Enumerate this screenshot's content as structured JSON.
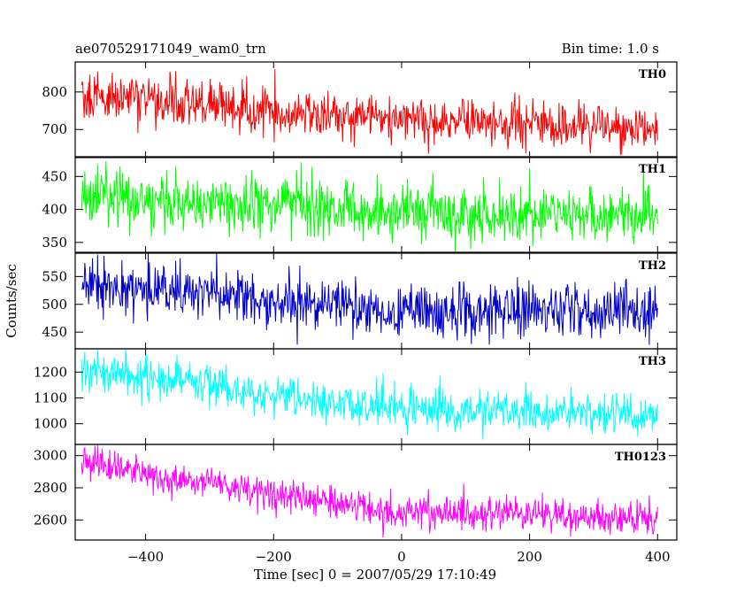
{
  "chart_data": {
    "type": "line",
    "title": "ae070529171049_wam0_trn",
    "subtitle": "Bin time: 1.0 s",
    "xlabel": "Time [sec] 0 = 2007/05/29 17:10:49",
    "ylabel": "Counts/sec",
    "xlim": [
      -510,
      430
    ],
    "x_ticks": [
      -400,
      -200,
      0,
      200,
      400
    ],
    "x_tick_labels": [
      "−400",
      "−200",
      "0",
      "200",
      "400"
    ],
    "x_sampling": {
      "start": -500,
      "end": 400,
      "step": 1
    },
    "grid": false,
    "legend": "none",
    "panels": [
      {
        "name": "TH0",
        "color": "#ff0000",
        "ylim": [
          625,
          880
        ],
        "y_ticks": [
          700,
          800
        ],
        "y_tick_labels": [
          "700",
          "800"
        ],
        "trend": {
          "x": [
            -500,
            -300,
            -200,
            0,
            400
          ],
          "y": [
            790,
            770,
            740,
            725,
            700
          ]
        },
        "noise_sd": 32
      },
      {
        "name": "TH1",
        "color": "#00ff00",
        "ylim": [
          335,
          480
        ],
        "y_ticks": [
          350,
          400,
          450
        ],
        "y_tick_labels": [
          "350",
          "400",
          "450"
        ],
        "trend": {
          "x": [
            -500,
            -300,
            0,
            400
          ],
          "y": [
            420,
            408,
            397,
            390
          ]
        },
        "noise_sd": 22
      },
      {
        "name": "TH2",
        "color": "#0000cc",
        "ylim": [
          420,
          592
        ],
        "y_ticks": [
          450,
          500,
          550
        ],
        "y_tick_labels": [
          "450",
          "500",
          "550"
        ],
        "trend": {
          "x": [
            -500,
            -300,
            -200,
            0,
            400
          ],
          "y": [
            535,
            520,
            500,
            490,
            487
          ]
        },
        "noise_sd": 24
      },
      {
        "name": "TH3",
        "color": "#00ffff",
        "ylim": [
          920,
          1290
        ],
        "y_ticks": [
          1000,
          1100,
          1200
        ],
        "y_tick_labels": [
          "1000",
          "1100",
          "1200"
        ],
        "trend": {
          "x": [
            -500,
            -300,
            -150,
            0,
            400
          ],
          "y": [
            1215,
            1150,
            1085,
            1055,
            1035
          ]
        },
        "noise_sd": 38
      },
      {
        "name": "TH0123",
        "color": "#ff00ff",
        "ylim": [
          2475,
          3070
        ],
        "y_ticks": [
          2600,
          2800,
          3000
        ],
        "y_tick_labels": [
          "2600",
          "2800",
          "3000"
        ],
        "trend": {
          "x": [
            -500,
            -300,
            -150,
            0,
            400
          ],
          "y": [
            2960,
            2830,
            2720,
            2650,
            2610
          ]
        },
        "noise_sd": 55
      }
    ]
  }
}
